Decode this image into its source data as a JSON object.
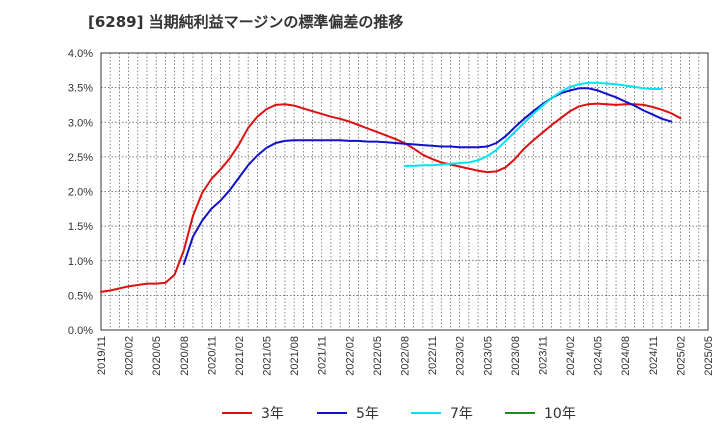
{
  "chart_data": {
    "type": "line",
    "title": "[6289]  当期純利益マージンの標準偏差の推移",
    "xlabel": "",
    "ylabel": "",
    "ylim": [
      0,
      4.0
    ],
    "y_ticks": [
      0,
      0.5,
      1.0,
      1.5,
      2.0,
      2.5,
      3.0,
      3.5,
      4.0
    ],
    "y_tick_labels": [
      "0.0%",
      "0.5%",
      "1.0%",
      "1.5%",
      "2.0%",
      "2.5%",
      "3.0%",
      "3.5%",
      "4.0%"
    ],
    "x_tick_labels": [
      "2019/11",
      "2020/02",
      "2020/05",
      "2020/08",
      "2020/11",
      "2021/02",
      "2021/05",
      "2021/08",
      "2021/11",
      "2022/02",
      "2022/05",
      "2022/08",
      "2022/11",
      "2023/02",
      "2023/05",
      "2023/08",
      "2023/11",
      "2024/02",
      "2024/05",
      "2024/08",
      "2024/11",
      "2025/02",
      "2025/05"
    ],
    "grid": true,
    "legend_position": "bottom",
    "series": [
      {
        "name": "3年",
        "color": "#dd1111",
        "start_month_index": 0,
        "values": [
          0.55,
          0.57,
          0.6,
          0.63,
          0.65,
          0.67,
          0.67,
          0.68,
          0.8,
          1.15,
          1.65,
          1.98,
          2.18,
          2.32,
          2.48,
          2.68,
          2.92,
          3.08,
          3.19,
          3.25,
          3.26,
          3.24,
          3.2,
          3.16,
          3.12,
          3.08,
          3.05,
          3.01,
          2.96,
          2.91,
          2.86,
          2.81,
          2.76,
          2.7,
          2.62,
          2.53,
          2.47,
          2.42,
          2.39,
          2.36,
          2.33,
          2.3,
          2.28,
          2.29,
          2.35,
          2.47,
          2.62,
          2.74,
          2.85,
          2.96,
          3.06,
          3.16,
          3.23,
          3.26,
          3.27,
          3.26,
          3.25,
          3.26,
          3.26,
          3.25,
          3.22,
          3.18,
          3.13,
          3.06
        ]
      },
      {
        "name": "5年",
        "color": "#1111cc",
        "start_month_index": 9,
        "values": [
          0.95,
          1.35,
          1.58,
          1.75,
          1.87,
          2.02,
          2.2,
          2.38,
          2.52,
          2.63,
          2.7,
          2.73,
          2.74,
          2.74,
          2.74,
          2.74,
          2.74,
          2.74,
          2.73,
          2.73,
          2.72,
          2.72,
          2.71,
          2.7,
          2.69,
          2.68,
          2.67,
          2.66,
          2.65,
          2.65,
          2.64,
          2.64,
          2.64,
          2.65,
          2.7,
          2.8,
          2.93,
          3.05,
          3.16,
          3.26,
          3.35,
          3.42,
          3.46,
          3.49,
          3.49,
          3.46,
          3.41,
          3.36,
          3.3,
          3.24,
          3.17,
          3.11,
          3.05,
          3.01
        ]
      },
      {
        "name": "7年",
        "color": "#00e5ee",
        "start_month_index": 33,
        "values": [
          2.37,
          2.37,
          2.38,
          2.38,
          2.39,
          2.4,
          2.41,
          2.42,
          2.45,
          2.51,
          2.6,
          2.73,
          2.86,
          2.99,
          3.12,
          3.24,
          3.35,
          3.44,
          3.51,
          3.55,
          3.57,
          3.57,
          3.56,
          3.55,
          3.53,
          3.51,
          3.49,
          3.48,
          3.48
        ]
      },
      {
        "name": "10年",
        "color": "#228822",
        "start_month_index": 0,
        "values": []
      }
    ]
  }
}
